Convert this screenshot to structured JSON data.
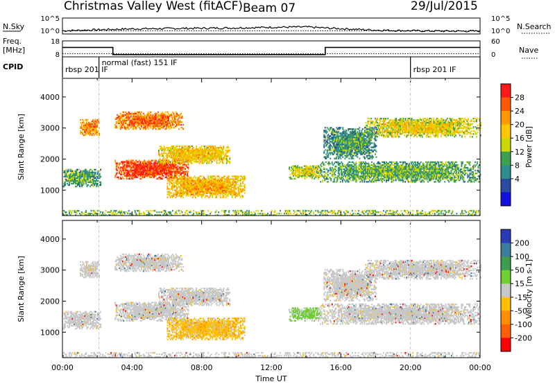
{
  "header": {
    "title": "Christmas Valley West (fitACF)",
    "beam": "Beam 07",
    "date": "29/Jul/2015"
  },
  "left_labels": {
    "nsky": "N.Sky",
    "freq": "Freq.",
    "freq_unit": "[MHz]",
    "cpid": "CPID"
  },
  "right_labels": {
    "nsearch": "N.Search",
    "nave": "Nave"
  },
  "cpid_segments": [
    {
      "label": "rbsp 201 IF",
      "start_hour": 0
    },
    {
      "label": "normal (fast) 151 IF",
      "start_hour": 2.1
    },
    {
      "label": "rbsp 201 IF",
      "start_hour": 20.0
    }
  ],
  "colorbars": {
    "power": {
      "label": "Power [dB]",
      "ticks": [
        "28",
        "24",
        "20",
        "16",
        "12",
        "8",
        "4"
      ],
      "colors": [
        "#ff1a1a",
        "#ff5a00",
        "#ff9a00",
        "#ffc800",
        "#c8d800",
        "#3ca050",
        "#2e8e8e",
        "#2a4ca0",
        "#1010e0"
      ]
    },
    "velocity": {
      "label": "Velocity [m s-1]",
      "ticks": [
        "200",
        "100",
        "50",
        "15",
        "-15",
        "-50",
        "-100",
        "-200"
      ],
      "colors": [
        "#2a3cb4",
        "#3c7c9c",
        "#3c9c50",
        "#6cd030",
        "#c8c8c8",
        "#ffc000",
        "#ff9000",
        "#ff6000",
        "#ff0000"
      ]
    }
  },
  "chart_data": [
    {
      "type": "line",
      "name": "noise-panel",
      "series": [
        {
          "name": "N.Sky",
          "x_hours": [
            0,
            2,
            4,
            6,
            8,
            10,
            12,
            14,
            15,
            18,
            20,
            22,
            24
          ],
          "values": [
            1.0,
            1.3,
            1.6,
            1.7,
            1.8,
            1.9,
            2.1,
            2.2,
            1.9,
            1.2,
            1.0,
            0.9,
            0.9
          ]
        },
        {
          "name": "N.Search",
          "x_hours": [
            0,
            24
          ],
          "values": [
            1.0,
            1.0
          ]
        }
      ],
      "ylim": [
        0,
        5
      ],
      "left_ticks": [
        "10^5",
        "10^0"
      ],
      "right_ticks": [
        "10^5",
        "10^0"
      ]
    },
    {
      "type": "line",
      "name": "freq-panel",
      "series": [
        {
          "name": "Freq",
          "x_hours": [
            0,
            2.9,
            2.9,
            15.1,
            15.1,
            24
          ],
          "values": [
            13.9,
            13.9,
            9.4,
            9.4,
            13.9,
            13.9
          ]
        },
        {
          "name": "Nave",
          "x_hours": [
            0,
            24
          ],
          "values": [
            10,
            10
          ]
        }
      ],
      "ylim": [
        8,
        18
      ],
      "left_ticks": [
        "18",
        "8"
      ],
      "right_ticks": [
        "60",
        "0"
      ]
    },
    {
      "type": "heatmap",
      "name": "power-panel",
      "ylabel": "Slant Range [km]",
      "ylim": [
        180,
        4600
      ],
      "y_ticks": [
        1000,
        2000,
        3000,
        4000
      ],
      "xlim": [
        0,
        24
      ]
    },
    {
      "type": "heatmap",
      "name": "velocity-panel",
      "ylabel": "Slant Range [km]",
      "ylim": [
        180,
        4600
      ],
      "y_ticks": [
        1000,
        2000,
        3000,
        4000
      ],
      "xlim": [
        0,
        24
      ]
    }
  ],
  "xaxis": {
    "label": "Time UT",
    "ticks": [
      {
        "hour": 0,
        "label": "00:00"
      },
      {
        "hour": 4,
        "label": "04:00"
      },
      {
        "hour": 8,
        "label": "08:00"
      },
      {
        "hour": 12,
        "label": "12:00"
      },
      {
        "hour": 16,
        "label": "16:00"
      },
      {
        "hour": 20,
        "label": "20:00"
      },
      {
        "hour": 24,
        "label": "00:00"
      }
    ]
  },
  "scatter_regions": [
    {
      "name": "echo-a",
      "h0": 1.0,
      "h1": 2.1,
      "r0": 2750,
      "r1": 3250,
      "pw": 21,
      "vel": "g"
    },
    {
      "name": "echo-b",
      "h0": 3.0,
      "h1": 6.9,
      "r0": 2950,
      "r1": 3500,
      "pw": 22,
      "vel": "g"
    },
    {
      "name": "echo-c",
      "h0": 3.0,
      "h1": 7.2,
      "r0": 1350,
      "r1": 1950,
      "pw": 25,
      "vel": "g"
    },
    {
      "name": "echo-d",
      "h0": 5.5,
      "h1": 9.6,
      "r0": 1850,
      "r1": 2400,
      "pw": 17,
      "vel": "g"
    },
    {
      "name": "echo-e",
      "h0": 6.0,
      "h1": 10.5,
      "r0": 750,
      "r1": 1450,
      "pw": 18,
      "vel": "o"
    },
    {
      "name": "echo-f",
      "h0": 0.0,
      "h1": 2.2,
      "r0": 1100,
      "r1": 1650,
      "pw": 9,
      "vel": "g"
    },
    {
      "name": "echo-g",
      "h0": 13.0,
      "h1": 14.9,
      "r0": 1350,
      "r1": 1800,
      "pw": 14,
      "vel": "v"
    },
    {
      "name": "echo-h",
      "h0": 14.8,
      "h1": 24.0,
      "r0": 1250,
      "r1": 1900,
      "pw": 10,
      "vel": "g"
    },
    {
      "name": "echo-i",
      "h0": 17.4,
      "h1": 24.0,
      "r0": 2700,
      "r1": 3300,
      "pw": 15,
      "vel": "g"
    },
    {
      "name": "echo-j",
      "h0": 15.0,
      "h1": 18.0,
      "r0": 2000,
      "r1": 3000,
      "pw": 8,
      "vel": "g"
    },
    {
      "name": "echo-k",
      "h0": 0.0,
      "h1": 24.0,
      "r0": 180,
      "r1": 360,
      "pw": 12,
      "vel": "g"
    }
  ]
}
